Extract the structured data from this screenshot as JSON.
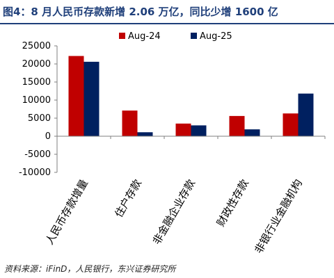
{
  "title": "图4：8 月人民币存款新增 2.06 万亿，同比少增 1600 亿",
  "source": "资料来源：iFinD，人民银行，东兴证券研究所",
  "colors": {
    "title": "#1f3f7a",
    "series_aug24": "#c00000",
    "series_aug25": "#002060"
  },
  "chart_data": {
    "type": "bar",
    "categories": [
      "人民币存款增量",
      "住户存款",
      "非金融企业存款",
      "财政性存款",
      "非银行业金融机构"
    ],
    "series": [
      {
        "name": "Aug-24",
        "values": [
          22200,
          7100,
          3500,
          5600,
          6300
        ]
      },
      {
        "name": "Aug-25",
        "values": [
          20600,
          1100,
          3000,
          1900,
          11800
        ]
      }
    ],
    "ylim": [
      -10000,
      25000
    ],
    "yticks": [
      -10000,
      -5000,
      0,
      5000,
      10000,
      15000,
      20000,
      25000
    ],
    "ytick_labels": [
      "-10000",
      "-5000",
      "0",
      "5000",
      "10000",
      "15000",
      "20000",
      "25000"
    ],
    "legend_position": "top",
    "grid": false
  }
}
